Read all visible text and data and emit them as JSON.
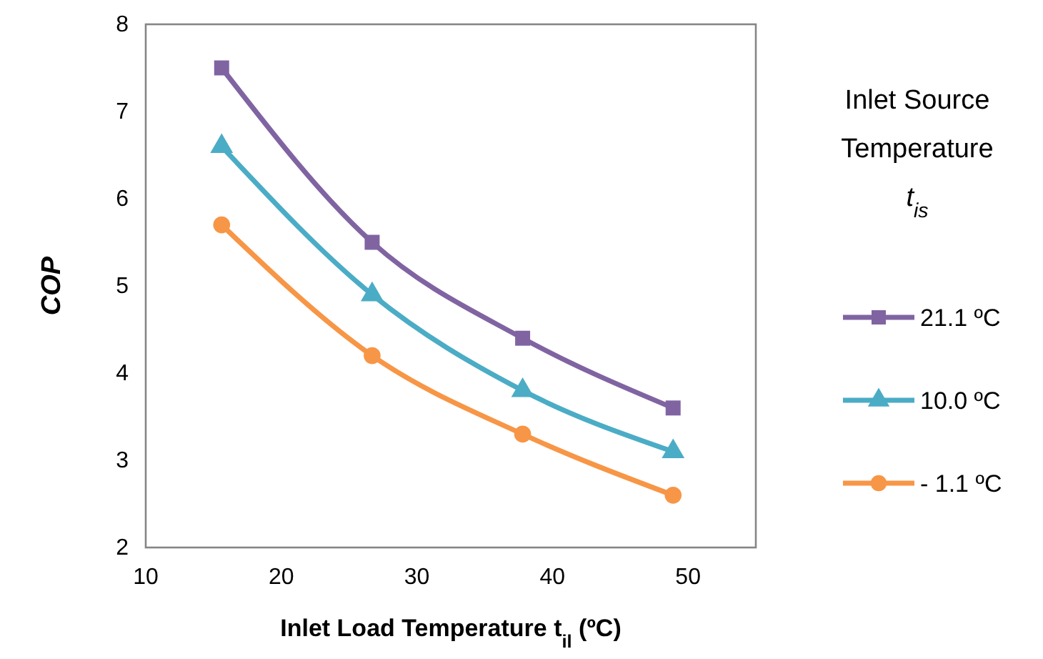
{
  "chart_data": {
    "type": "line",
    "xlabel": "Inlet Load Temperature t$_{il}$ (ºC)",
    "ylabel": "COP",
    "legend_title": "Inlet Source Temperature t$_{is}$",
    "x": [
      15.6,
      26.7,
      37.8,
      48.9
    ],
    "xlim": [
      10,
      55
    ],
    "xticks": [
      10,
      20,
      30,
      40,
      50
    ],
    "ylim": [
      2,
      8
    ],
    "yticks": [
      2,
      3,
      4,
      5,
      6,
      7,
      8
    ],
    "grid": false,
    "legend": "right",
    "line_style": "solid",
    "series": [
      {
        "name": "21.1 ºC",
        "color": "#8064a2",
        "marker": "square",
        "values": [
          7.5,
          5.5,
          4.4,
          3.6
        ]
      },
      {
        "name": "10.0 ºC",
        "color": "#4bacc6",
        "marker": "triangle",
        "values": [
          6.6,
          4.9,
          3.8,
          3.1
        ]
      },
      {
        "name": "- 1.1 ºC",
        "color": "#f79646",
        "marker": "circle",
        "values": [
          5.7,
          4.2,
          3.3,
          2.6
        ]
      }
    ]
  }
}
